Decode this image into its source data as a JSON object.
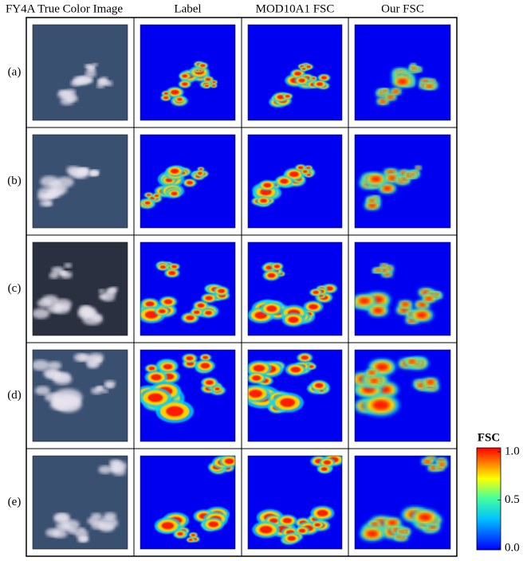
{
  "header": {
    "columns": [
      "FY4A True Color Image",
      "Label",
      "MOD10A1 FSC",
      "Our FSC"
    ]
  },
  "rows": [
    "(a)",
    "(b)",
    "(c)",
    "(d)",
    "(e)"
  ],
  "colorbar": {
    "title": "FSC",
    "ticks": [
      {
        "value": 1,
        "label": "1.0"
      },
      {
        "value": 0.5,
        "label": "0.5"
      },
      {
        "value": 0,
        "label": "0.0"
      }
    ]
  }
}
